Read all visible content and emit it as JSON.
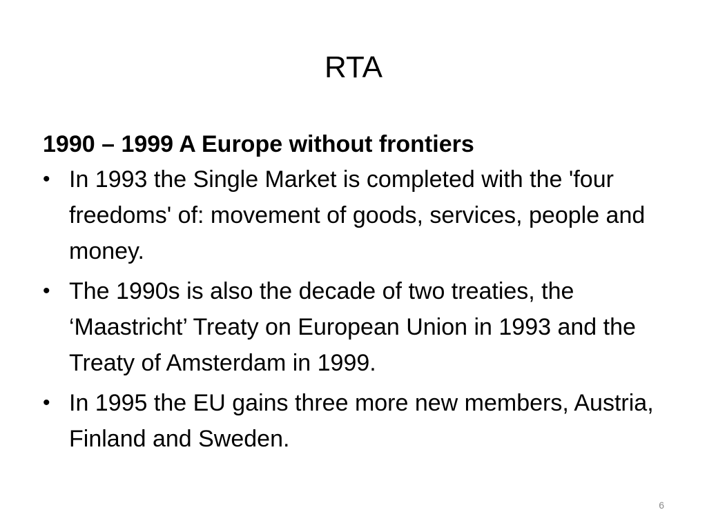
{
  "slide": {
    "title": "RTA",
    "heading": "1990 – 1999 A Europe without frontiers",
    "bullets": [
      {
        "symbol": "•",
        "text": "In 1993 the Single Market is completed with the  'four freedoms' of: movement of goods, services, people and money."
      },
      {
        "symbol": "•",
        "text": "The 1990s is also the decade of two treaties, the ‘Maastricht’ Treaty on European Union in 1993 and the Treaty of Amsterdam in 1999."
      },
      {
        "symbol": "•",
        "text": "In 1995 the EU gains three more new members, Austria, Finland and Sweden."
      }
    ],
    "page_number": "6"
  }
}
